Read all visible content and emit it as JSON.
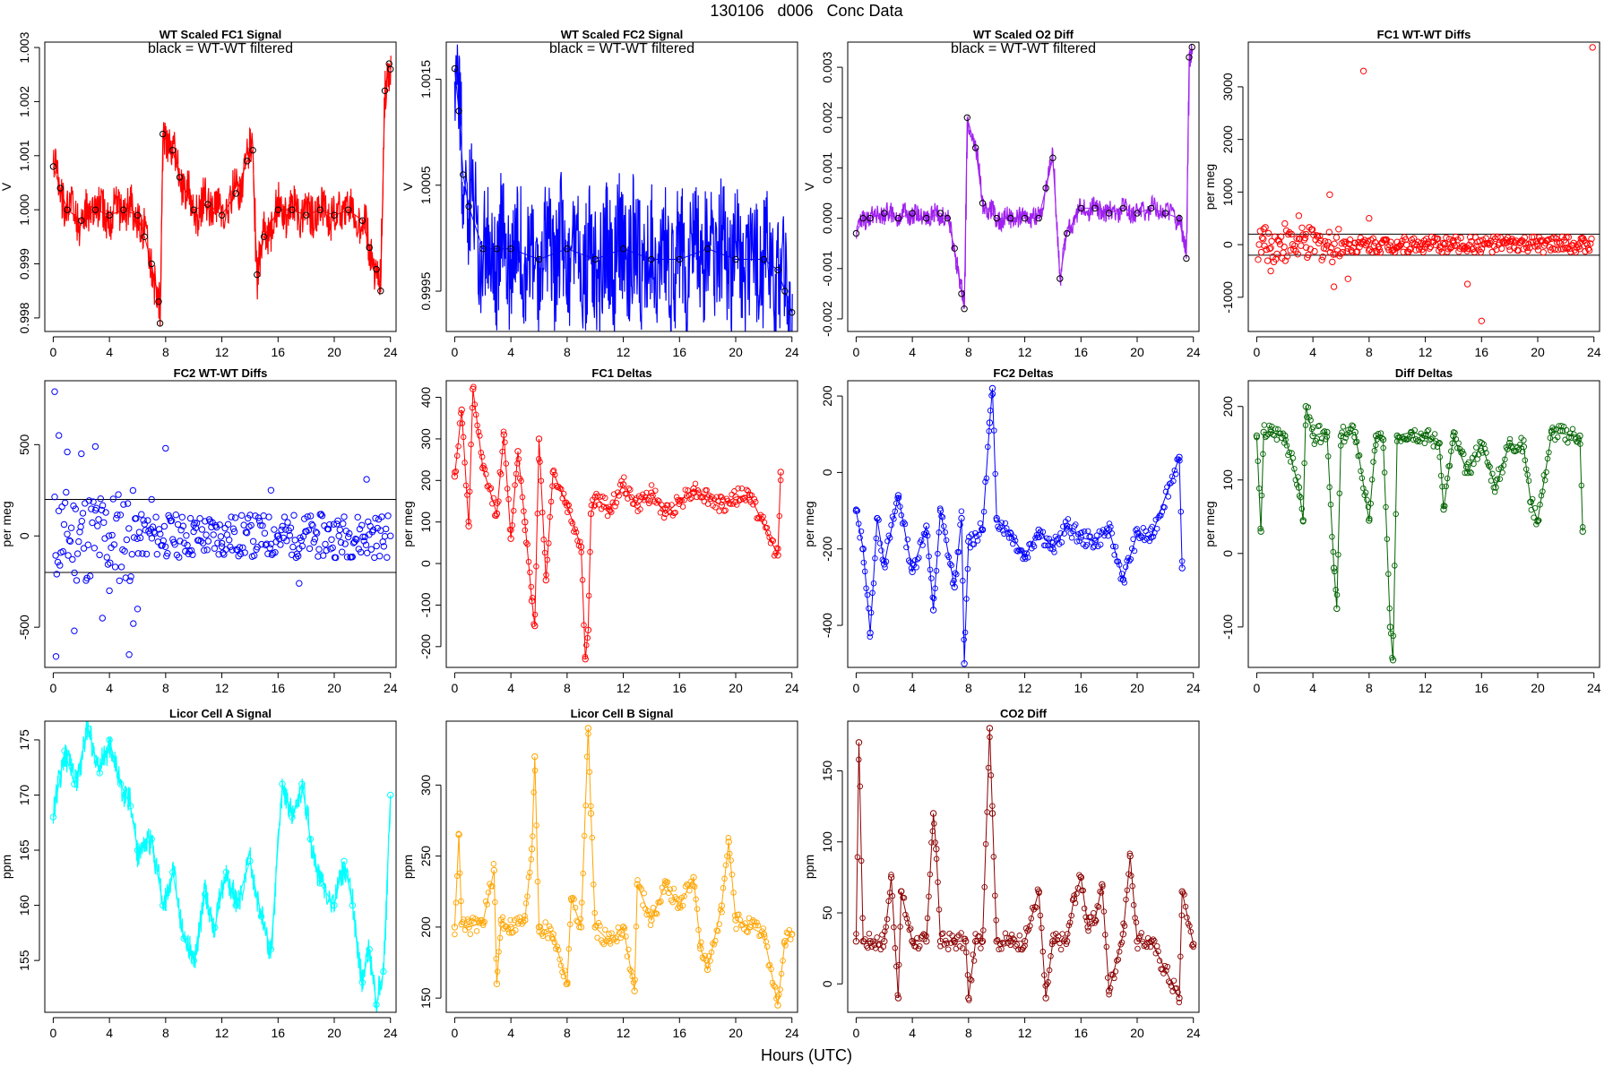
{
  "figure": {
    "title": "130106   d006   Conc Data",
    "xlabel": "Hours (UTC)"
  },
  "chart_data": [
    {
      "type": "line",
      "title": "WT Scaled FC1 Signal",
      "annotation": "black = WT-WT filtered",
      "ylabel": "V",
      "xlim": [
        -0.6,
        24.4
      ],
      "ylim": [
        0.99775,
        1.0031
      ],
      "xticks": [
        0,
        4,
        8,
        12,
        16,
        20,
        24
      ],
      "yticks": [
        0.998,
        0.999,
        1.0,
        1.001,
        1.002,
        1.003
      ],
      "ytick_labels": [
        "0.998",
        "0.999",
        "1.000",
        "1.001",
        "1.002",
        "1.003"
      ],
      "color": "#ff0000",
      "marker_color": "#000000",
      "band": 0.0004,
      "x": [
        0,
        0.5,
        1,
        2,
        3,
        4,
        5,
        6,
        6.5,
        7,
        7.5,
        7.6,
        7.8,
        8.5,
        9,
        10,
        11,
        12,
        13,
        13.8,
        14.2,
        14.5,
        15,
        16,
        17,
        18,
        19,
        20,
        21,
        22,
        22.5,
        23,
        23.3,
        23.6,
        23.9,
        24
      ],
      "y": [
        1.0008,
        1.0004,
        1.0,
        0.9998,
        1.0,
        0.9999,
        1.0,
        0.9999,
        0.9995,
        0.999,
        0.9983,
        0.9979,
        1.0014,
        1.0011,
        1.0006,
        1.0,
        1.0001,
        0.9999,
        1.0003,
        1.0009,
        1.0011,
        0.9988,
        0.9995,
        1.0,
        1.0,
        0.9999,
        1.0,
        0.9999,
        1.0,
        0.9998,
        0.9993,
        0.9989,
        0.9985,
        1.0022,
        1.0027,
        1.0026
      ]
    },
    {
      "type": "line",
      "title": "WT Scaled FC2 Signal",
      "annotation": "black = WT-WT filtered",
      "ylabel": "V",
      "xlim": [
        -0.6,
        24.4
      ],
      "ylim": [
        0.99912,
        1.00185
      ],
      "xticks": [
        0,
        4,
        8,
        12,
        16,
        20,
        24
      ],
      "yticks": [
        0.9995,
        1.0005,
        1.0015
      ],
      "ytick_labels": [
        "0.9995",
        "1.0005",
        "1.0015"
      ],
      "color": "#0000ff",
      "marker_color": "#000000",
      "band": 0.0006,
      "x": [
        0,
        0.3,
        0.6,
        1,
        2,
        3,
        4,
        6,
        8,
        10,
        12,
        14,
        16,
        18,
        20,
        22,
        23,
        23.5,
        24
      ],
      "y": [
        1.0016,
        1.0012,
        1.0006,
        1.0003,
        0.9999,
        0.9999,
        0.9999,
        0.9998,
        0.9999,
        0.9998,
        0.9999,
        0.9998,
        0.9998,
        0.9999,
        0.9998,
        0.9998,
        0.9997,
        0.9995,
        0.9993
      ]
    },
    {
      "type": "line",
      "title": "WT Scaled O2 Diff",
      "annotation": "black = WT-WT filtered",
      "ylabel": "V",
      "xlim": [
        -0.6,
        24.4
      ],
      "ylim": [
        -0.00225,
        0.0035
      ],
      "xticks": [
        0,
        4,
        8,
        12,
        16,
        20,
        24
      ],
      "yticks": [
        -0.002,
        -0.001,
        0.0,
        0.001,
        0.002,
        0.003
      ],
      "ytick_labels": [
        "-0.002",
        "-0.001",
        "0.000",
        "0.001",
        "0.002",
        "0.003"
      ],
      "color": "#a020f0",
      "marker_color": "#000000",
      "band": 0.0002,
      "x": [
        0,
        0.5,
        1,
        2,
        3,
        4,
        5,
        6,
        6.5,
        7,
        7.5,
        7.7,
        7.9,
        8.5,
        9,
        10,
        11,
        12,
        13,
        13.5,
        14,
        14.5,
        15,
        16,
        17,
        18,
        19,
        20,
        21,
        22,
        23,
        23.5,
        23.7,
        23.9
      ],
      "y": [
        -0.0003,
        0.0,
        0.0,
        0.0001,
        0.0,
        0.0001,
        0.0,
        0.0001,
        0.0,
        -0.0006,
        -0.0015,
        -0.0018,
        0.002,
        0.0014,
        0.0003,
        0.0,
        0.0,
        0.0,
        0.0,
        0.0006,
        0.0012,
        -0.0012,
        -0.0003,
        0.0002,
        0.0002,
        0.0001,
        0.0002,
        0.0001,
        0.0002,
        0.0001,
        0.0,
        -0.0008,
        0.0032,
        0.0034
      ]
    },
    {
      "type": "scatter",
      "title": "FC1 WT-WT Diffs",
      "ylabel": "per meg",
      "xlim": [
        -0.6,
        24.4
      ],
      "ylim": [
        -1650,
        3850
      ],
      "xticks": [
        0,
        4,
        8,
        12,
        16,
        20,
        24
      ],
      "yticks": [
        -1000,
        0,
        1000,
        2000,
        3000
      ],
      "ytick_labels": [
        "-1000",
        "0",
        "1000",
        "2000",
        "3000"
      ],
      "color": "#ff0000",
      "hlines": [
        200,
        -200
      ],
      "spread": 150,
      "x": [
        0.5,
        1,
        2,
        3,
        3.5,
        5.2,
        5.5,
        6.5,
        7.6,
        8,
        10,
        12,
        14,
        15,
        16,
        18,
        20,
        22,
        23,
        23.9
      ],
      "y": [
        300,
        -500,
        400,
        550,
        200,
        950,
        -800,
        -650,
        3300,
        500,
        50,
        -50,
        80,
        -750,
        -1450,
        60,
        -30,
        40,
        -80,
        3750
      ]
    },
    {
      "type": "scatter",
      "title": "FC2 WT-WT Diffs",
      "ylabel": "per meg",
      "xlim": [
        -0.6,
        24.4
      ],
      "ylim": [
        -720,
        850
      ],
      "xticks": [
        0,
        4,
        8,
        12,
        16,
        20,
        24
      ],
      "yticks": [
        -500,
        0,
        500
      ],
      "ytick_labels": [
        "-500",
        "0",
        "500"
      ],
      "color": "#0000ff",
      "hlines": [
        200,
        -200
      ],
      "spread": 120,
      "x": [
        0.1,
        0.2,
        0.4,
        1,
        1.5,
        2,
        3,
        3.5,
        4,
        5.4,
        5.7,
        6,
        7,
        8,
        10,
        12,
        15.5,
        17.5,
        22.3,
        24
      ],
      "y": [
        790,
        -660,
        550,
        460,
        -520,
        450,
        490,
        -450,
        -300,
        -650,
        -480,
        -400,
        200,
        480,
        60,
        -40,
        250,
        -260,
        310,
        0
      ]
    },
    {
      "type": "line",
      "title": "FC1 Deltas",
      "ylabel": "per meg",
      "xlim": [
        -0.6,
        24.4
      ],
      "ylim": [
        -250,
        440
      ],
      "xticks": [
        0,
        4,
        8,
        12,
        16,
        20,
        24
      ],
      "yticks": [
        -200,
        -100,
        0,
        100,
        200,
        300,
        400
      ],
      "ytick_labels": [
        "-200",
        "-100",
        "0",
        "100",
        "200",
        "300",
        "400"
      ],
      "color": "#ff0000",
      "x": [
        0,
        0.5,
        1,
        1.3,
        2,
        3,
        3.5,
        4,
        4.5,
        5,
        5.5,
        5.7,
        6,
        6.5,
        7,
        8,
        9,
        9.3,
        9.5,
        9.7,
        10,
        11,
        12,
        13,
        14,
        15,
        16,
        17,
        18,
        19,
        20,
        21,
        23,
        23.2
      ],
      "y": [
        210,
        370,
        90,
        420,
        230,
        120,
        310,
        60,
        270,
        100,
        -90,
        -150,
        300,
        -40,
        220,
        140,
        40,
        -230,
        -160,
        120,
        160,
        130,
        190,
        140,
        170,
        120,
        150,
        180,
        160,
        140,
        160,
        165,
        20,
        220
      ]
    },
    {
      "type": "line",
      "title": "FC2 Deltas",
      "ylabel": "per meg",
      "xlim": [
        -0.6,
        24.4
      ],
      "ylim": [
        -510,
        240
      ],
      "xticks": [
        0,
        4,
        8,
        12,
        16,
        20,
        24
      ],
      "yticks": [
        -400,
        -200,
        0,
        200
      ],
      "ytick_labels": [
        "-400",
        "-200",
        "0",
        "200"
      ],
      "color": "#0000ff",
      "x": [
        0,
        0.5,
        1,
        1.5,
        2,
        3,
        4,
        5,
        5.5,
        6,
        7,
        7.5,
        7.7,
        8,
        9,
        9.5,
        9.7,
        10,
        11,
        12,
        13,
        14,
        15,
        16,
        17,
        18,
        19,
        20,
        21,
        23,
        23.2
      ],
      "y": [
        -100,
        -200,
        -420,
        -120,
        -240,
        -60,
        -260,
        -140,
        -360,
        -100,
        -300,
        -120,
        -500,
        -180,
        -150,
        130,
        220,
        -120,
        -160,
        -220,
        -150,
        -200,
        -140,
        -170,
        -180,
        -150,
        -280,
        -160,
        -170,
        40,
        -250
      ]
    },
    {
      "type": "line",
      "title": "Diff Deltas",
      "ylabel": "per meg",
      "xlim": [
        -0.6,
        24.4
      ],
      "ylim": [
        -155,
        235
      ],
      "xticks": [
        0,
        4,
        8,
        12,
        16,
        20,
        24
      ],
      "yticks": [
        -100,
        0,
        100,
        200
      ],
      "ytick_labels": [
        "-100",
        "0",
        "100",
        "200"
      ],
      "color": "#006400",
      "x": [
        0,
        0.3,
        0.5,
        1,
        2,
        3,
        3.3,
        3.5,
        4,
        5,
        5.5,
        5.7,
        6,
        7,
        8,
        8.5,
        9,
        9.5,
        9.7,
        10,
        11,
        12,
        13,
        13.3,
        14,
        15,
        16,
        17,
        18,
        19,
        19.5,
        20,
        21,
        23,
        23.2
      ],
      "y": [
        160,
        30,
        165,
        165,
        160,
        90,
        45,
        200,
        160,
        165,
        -20,
        -75,
        160,
        165,
        45,
        160,
        155,
        -100,
        -145,
        160,
        165,
        160,
        150,
        60,
        160,
        110,
        150,
        90,
        150,
        145,
        70,
        45,
        165,
        160,
        30
      ]
    },
    {
      "type": "line",
      "title": "Licor Cell A Signal",
      "ylabel": "ppm",
      "xlim": [
        -0.6,
        24.4
      ],
      "ylim": [
        150.3,
        176.7
      ],
      "xticks": [
        0,
        4,
        8,
        12,
        16,
        20,
        24
      ],
      "yticks": [
        155,
        160,
        165,
        170,
        175
      ],
      "ytick_labels": [
        "155",
        "160",
        "165",
        "170",
        "175"
      ],
      "color": "#00ffff",
      "band": 1.2,
      "x": [
        0,
        0.8,
        1.5,
        2.5,
        3.3,
        4,
        4.8,
        5.5,
        6,
        7,
        7.8,
        8.5,
        9.3,
        10,
        10.8,
        11.5,
        12.3,
        13,
        14,
        14.8,
        15.5,
        16.3,
        17,
        17.7,
        18.3,
        19,
        20,
        20.7,
        21.3,
        22,
        22.5,
        23,
        23.5,
        24
      ],
      "y": [
        168,
        174,
        171,
        176,
        172,
        175,
        171,
        169,
        165,
        166,
        160,
        163,
        157,
        155,
        161,
        158,
        163,
        160,
        164,
        159,
        156,
        171,
        168,
        171,
        166,
        162,
        160,
        164,
        160,
        153,
        156,
        151,
        154,
        170
      ]
    },
    {
      "type": "line",
      "title": "Licor Cell B Signal",
      "ylabel": "ppm",
      "xlim": [
        -0.6,
        24.4
      ],
      "ylim": [
        140,
        345
      ],
      "xticks": [
        0,
        4,
        8,
        12,
        16,
        20,
        24
      ],
      "yticks": [
        150,
        200,
        250,
        300
      ],
      "ytick_labels": [
        "150",
        "200",
        "250",
        "300"
      ],
      "color": "#ffa500",
      "x": [
        0,
        0.3,
        0.5,
        1,
        2,
        2.8,
        3,
        3.3,
        4,
        5,
        5.5,
        5.7,
        6,
        7,
        8,
        8.3,
        9,
        9.5,
        9.7,
        10,
        11,
        12,
        12.8,
        13,
        14,
        15,
        16,
        17,
        17.5,
        18,
        19,
        19.5,
        20,
        21,
        22,
        23,
        23.5,
        24
      ],
      "y": [
        200,
        265,
        202,
        200,
        203,
        240,
        160,
        205,
        200,
        205,
        255,
        320,
        200,
        195,
        160,
        220,
        200,
        340,
        280,
        200,
        190,
        200,
        155,
        230,
        205,
        230,
        215,
        235,
        185,
        170,
        215,
        260,
        205,
        200,
        195,
        145,
        190,
        195
      ]
    },
    {
      "type": "line",
      "title": "CO2 Diff",
      "ylabel": "ppm",
      "xlim": [
        -0.6,
        24.4
      ],
      "ylim": [
        -20,
        185
      ],
      "xticks": [
        0,
        4,
        8,
        12,
        16,
        20,
        24
      ],
      "yticks": [
        0,
        50,
        100,
        150
      ],
      "ytick_labels": [
        "0",
        "50",
        "100",
        "150"
      ],
      "color": "#8b0000",
      "x": [
        0,
        0.2,
        0.5,
        1,
        2,
        2.5,
        3,
        3.2,
        4,
        5,
        5.5,
        5.7,
        6,
        7,
        7.8,
        8,
        8.5,
        9,
        9.5,
        9.7,
        10,
        11,
        12,
        13,
        13.5,
        14,
        15,
        15.5,
        16,
        16.5,
        17,
        17.5,
        18,
        19,
        19.5,
        20,
        21,
        23,
        23.2,
        24
      ],
      "y": [
        30,
        170,
        30,
        30,
        30,
        75,
        -10,
        65,
        30,
        30,
        120,
        95,
        30,
        30,
        30,
        -10,
        30,
        30,
        180,
        120,
        30,
        30,
        30,
        65,
        -10,
        30,
        30,
        60,
        75,
        40,
        45,
        70,
        -5,
        35,
        90,
        30,
        30,
        -10,
        65,
        28
      ]
    }
  ]
}
